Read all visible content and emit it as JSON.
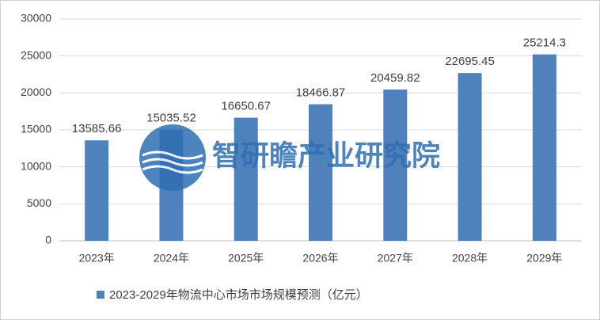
{
  "chart_data": {
    "type": "bar",
    "categories": [
      "2023年",
      "2024年",
      "2025年",
      "2026年",
      "2027年",
      "2028年",
      "2029年"
    ],
    "series": [
      {
        "name": "2023-2029年物流中心市场市场规模预测（亿元）",
        "color": "#4f81bd",
        "values": [
          13585.66,
          15035.52,
          16650.67,
          18466.87,
          20459.82,
          22695.45,
          25214.3
        ]
      }
    ],
    "ylim": [
      0,
      30000
    ],
    "yticks": [
      0,
      5000,
      10000,
      15000,
      20000,
      25000,
      30000
    ],
    "grid": true,
    "legend": "bottom",
    "watermark": "智研瞻产业研究院"
  }
}
